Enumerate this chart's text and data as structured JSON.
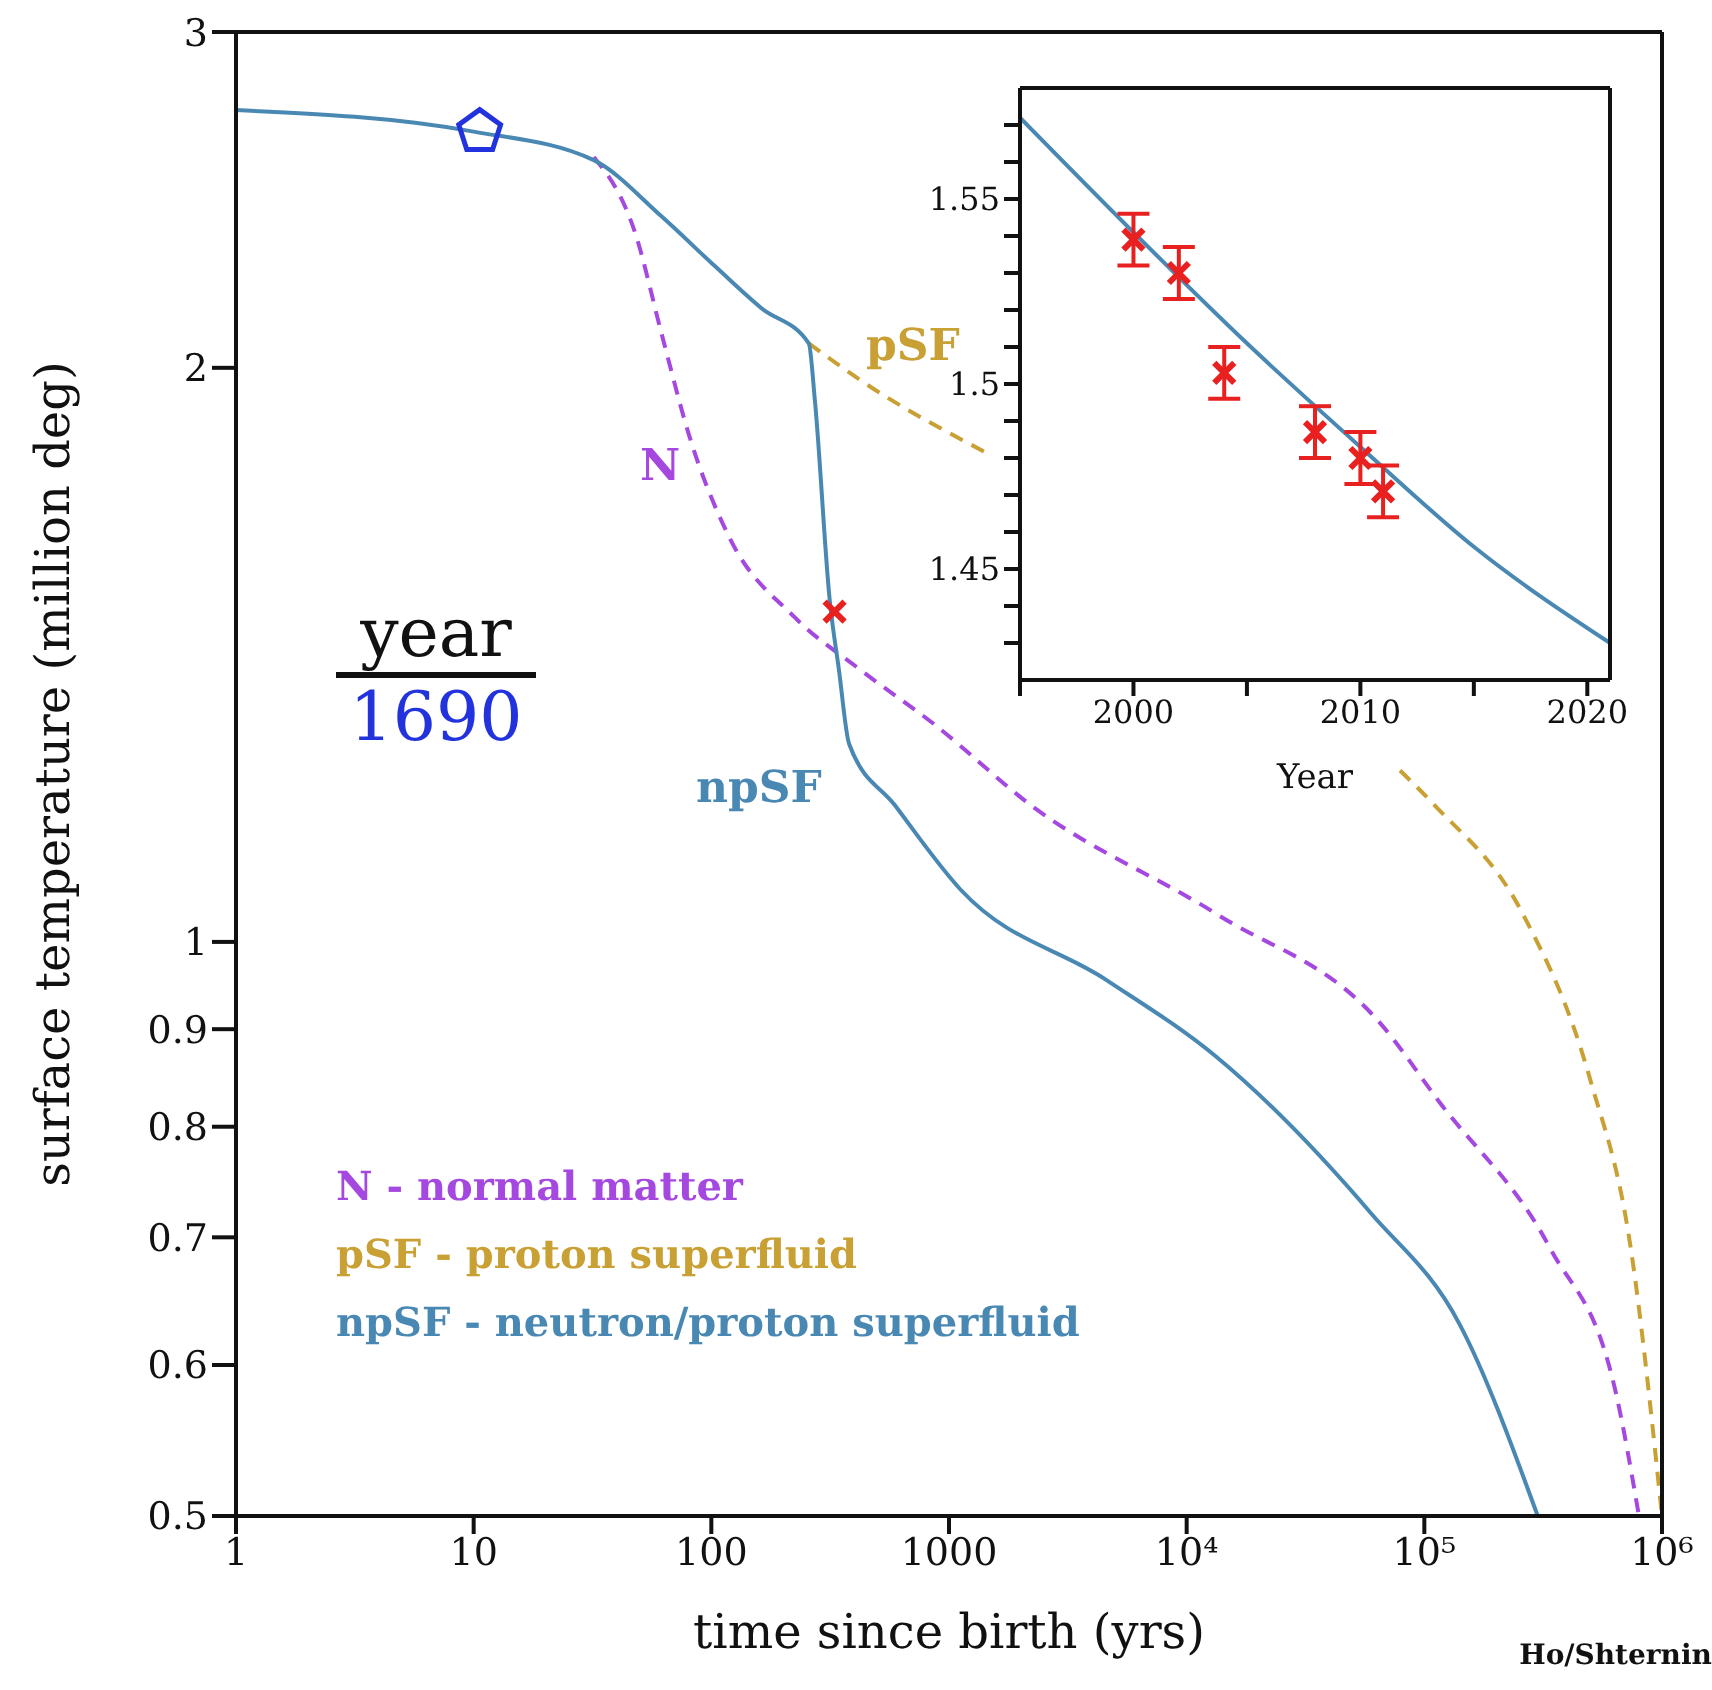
{
  "chart_data": [
    {
      "type": "line",
      "xlabel": "time since birth (yrs)",
      "ylabel": "surface temperature  (million deg)",
      "log": "xy",
      "legend": "bottom left",
      "grid": false,
      "xlim": [
        1,
        1000000
      ],
      "xticks": [
        1,
        10,
        100,
        1000,
        {
          "value": 10000,
          "label": "10⁴"
        },
        {
          "value": 100000,
          "label": "10⁵"
        },
        {
          "value": 1000000,
          "label": "10⁶"
        }
      ],
      "ylim": [
        0.5,
        3
      ],
      "yticks": [
        0.5,
        0.6,
        0.7,
        0.8,
        0.9,
        1,
        2,
        3
      ],
      "series": [
        {
          "name": "N - normal matter",
          "color": "#a448e0",
          "line_style": "dashed",
          "x": [
            32,
            48,
            62,
            81,
            119,
            224,
            420,
            870,
            2200,
            13400,
            66000,
            115000,
            340000,
            640000,
            800000
          ],
          "values": [
            2.58,
            2.35,
            2.08,
            1.84,
            1.63,
            1.48,
            1.39,
            1.3,
            1.18,
            1.034,
            0.905,
            0.825,
            0.69,
            0.58,
            0.5
          ]
        },
        {
          "name": "pSF - proton superfluid",
          "color": "#c8a034",
          "line_style": "dashed",
          "x": [
            257,
            425,
            1500,
            10000,
            79000,
            110000,
            260000,
            500000,
            740000,
            1000000
          ],
          "values": [
            2.06,
            1.97,
            1.8,
            null,
            1.23,
            1.18,
            1.034,
            0.846,
            0.69,
            0.5
          ]
        },
        {
          "name": "npSF - neutron/proton superfluid",
          "color": "#4a88b4",
          "line_style": "solid",
          "x": [
            1,
            10,
            32,
            62,
            104,
            162,
            257,
            273,
            315,
            344,
            380,
            590,
            1120,
            4600,
            13400,
            60000,
            141000,
            300000
          ],
          "values": [
            2.73,
            2.66,
            2.57,
            2.4,
            2.26,
            2.15,
            2.06,
            1.92,
            1.51,
            1.39,
            1.27,
            1.18,
            1.065,
            0.955,
            0.87,
            0.72,
            0.63,
            0.5
          ]
        },
        {
          "type": "scatter",
          "color": "#2233dd",
          "x": [
            10.6
          ],
          "values": [
            2.66
          ]
        },
        {
          "type": "scatter",
          "color": "#e82020",
          "marker": "cross",
          "x": [
            330
          ],
          "values": [
            1.49
          ]
        }
      ],
      "annotations": [
        "N",
        "pSF",
        "npSF",
        "year",
        "1690",
        "Ho/Shternin"
      ]
    },
    {
      "type": "line",
      "xlabel": "Year",
      "grid": false,
      "xlim": [
        1995,
        2021
      ],
      "xticks": [
        {
          "value": 1995,
          "label": null
        },
        2000,
        {
          "value": 2005,
          "label": null
        },
        2010,
        {
          "value": 2015,
          "label": null
        },
        2020
      ],
      "ylim": [
        1.42,
        1.58
      ],
      "yticks": [
        {
          "value": 1.43,
          "label": null
        },
        {
          "value": 1.44,
          "label": null
        },
        1.45,
        {
          "value": 1.46,
          "label": null
        },
        {
          "value": 1.47,
          "label": null
        },
        {
          "value": 1.48,
          "label": null
        },
        {
          "value": 1.49,
          "label": null
        },
        1.5,
        {
          "value": 1.51,
          "label": null
        },
        {
          "value": 1.52,
          "label": null
        },
        {
          "value": 1.53,
          "label": null
        },
        {
          "value": 1.54,
          "label": null
        },
        1.55,
        {
          "value": 1.56,
          "label": null
        },
        {
          "value": 1.57,
          "label": null
        }
      ],
      "series": [
        {
          "color": "#4a88b4",
          "x": [
            1995,
            2000,
            2005,
            2010,
            2015,
            2021
          ],
          "values": [
            1.572,
            1.541,
            1.511,
            1.483,
            1.456,
            1.43
          ]
        },
        {
          "type": "scatter",
          "color": "#e82020",
          "marker": "cross",
          "x": [
            2000,
            2002,
            2004,
            2008,
            2010,
            2011
          ],
          "values": [
            1.539,
            1.53,
            1.503,
            1.487,
            1.48,
            1.471
          ],
          "errors": [
            0.007,
            0.007,
            0.007,
            0.007,
            0.007,
            0.007
          ]
        }
      ]
    }
  ]
}
